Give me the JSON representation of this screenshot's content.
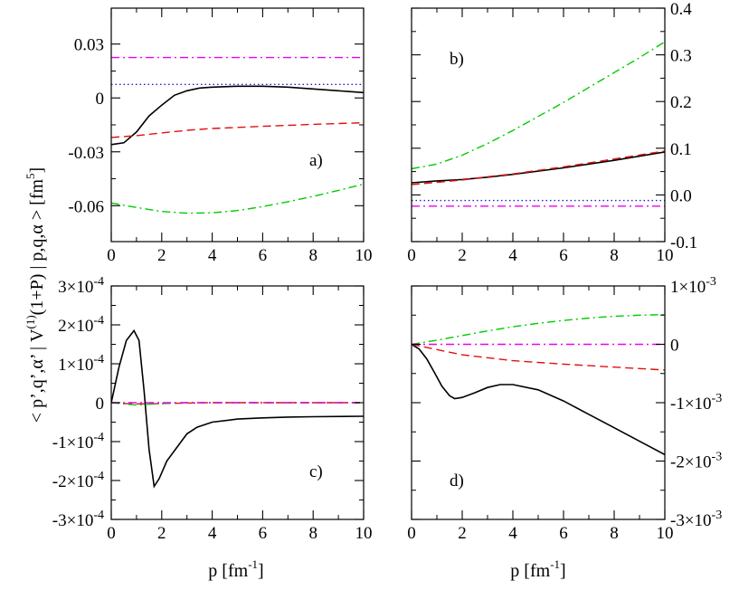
{
  "figure": {
    "ylabel_parts": {
      "pre": "< p’,q’,α’ | V",
      "sup1": "(1)",
      "mid": "(1+P) | p,q,α > [fm",
      "sup2": "5",
      "post": "]"
    },
    "xlabel_parts": {
      "pre": "p [fm",
      "sup": "-1",
      "post": "]"
    }
  },
  "chart_data": [
    {
      "type": "line",
      "panel_label": "a)",
      "xlim": [
        0,
        10
      ],
      "ylim": [
        -0.08,
        0.05
      ],
      "x_ticks": [
        0,
        2,
        4,
        6,
        8,
        10
      ],
      "x_tick_labels": [
        "0",
        "2",
        "4",
        "6",
        "8",
        "10"
      ],
      "y_ticks": [
        -0.06,
        -0.03,
        0,
        0.03
      ],
      "y_tick_labels": [
        "-0.06",
        "-0.03",
        "0",
        "0.03"
      ],
      "y_side": "left",
      "series": [
        {
          "name": "solid",
          "color": "#000000",
          "dash": "solid",
          "x": [
            0,
            0.5,
            1,
            1.5,
            2,
            2.5,
            3,
            3.5,
            4,
            5,
            6,
            7,
            8,
            9,
            10
          ],
          "y": [
            -0.026,
            -0.025,
            -0.019,
            -0.01,
            -0.004,
            0.0015,
            0.004,
            0.0055,
            0.006,
            0.0065,
            0.0065,
            0.006,
            0.005,
            0.004,
            0.003
          ]
        },
        {
          "name": "dashed",
          "color": "#e01010",
          "dash": "dashed",
          "x": [
            0,
            1,
            2,
            3,
            4,
            6,
            8,
            10
          ],
          "y": [
            -0.022,
            -0.021,
            -0.0195,
            -0.018,
            -0.017,
            -0.0158,
            -0.0147,
            -0.0138
          ]
        },
        {
          "name": "dotted",
          "color": "#2020d0",
          "dash": "dotted",
          "x": [
            0,
            10
          ],
          "y": [
            0.0075,
            0.0075
          ]
        },
        {
          "name": "dash-dot",
          "color": "#00cc00",
          "dash": "dashdot",
          "x": [
            0,
            1,
            2,
            3,
            4,
            5,
            6,
            7,
            8,
            9,
            10
          ],
          "y": [
            -0.0585,
            -0.061,
            -0.0632,
            -0.0642,
            -0.064,
            -0.0627,
            -0.0605,
            -0.0578,
            -0.0548,
            -0.0515,
            -0.048
          ]
        },
        {
          "name": "dash-dot magenta",
          "color": "#ee00ee",
          "dash": "dashdot",
          "x": [
            0,
            10
          ],
          "y": [
            0.0225,
            0.0225
          ]
        }
      ]
    },
    {
      "type": "line",
      "panel_label": "b)",
      "xlim": [
        0,
        10
      ],
      "ylim": [
        -0.1,
        0.4
      ],
      "x_ticks": [
        0,
        2,
        4,
        6,
        8,
        10
      ],
      "x_tick_labels": [
        "0",
        "2",
        "4",
        "6",
        "8",
        "10"
      ],
      "y_ticks": [
        -0.1,
        0,
        0.1,
        0.2,
        0.3,
        0.4
      ],
      "y_tick_labels": [
        "-0.1",
        "0.0",
        "0.1",
        "0.2",
        "0.3",
        "0.4"
      ],
      "y_side": "right",
      "series": [
        {
          "name": "solid",
          "color": "#000000",
          "dash": "solid",
          "x": [
            0,
            1,
            2,
            3,
            4,
            6,
            8,
            10
          ],
          "y": [
            0.026,
            0.03,
            0.033,
            0.038,
            0.044,
            0.058,
            0.074,
            0.092
          ]
        },
        {
          "name": "dashed",
          "color": "#e01010",
          "dash": "dashed",
          "x": [
            0,
            1,
            2,
            3,
            4,
            6,
            8,
            10
          ],
          "y": [
            0.022,
            0.027,
            0.032,
            0.039,
            0.045,
            0.06,
            0.077,
            0.094
          ]
        },
        {
          "name": "dotted",
          "color": "#2020d0",
          "dash": "dotted",
          "x": [
            0,
            10
          ],
          "y": [
            -0.012,
            -0.012
          ]
        },
        {
          "name": "dash-dot",
          "color": "#00cc00",
          "dash": "dashdot",
          "x": [
            0,
            1,
            2,
            3,
            4,
            5,
            6,
            7,
            8,
            9,
            10
          ],
          "y": [
            0.056,
            0.066,
            0.085,
            0.11,
            0.138,
            0.168,
            0.198,
            0.23,
            0.262,
            0.294,
            0.328
          ]
        },
        {
          "name": "dash-dot magenta",
          "color": "#ee00ee",
          "dash": "dashdot",
          "x": [
            0,
            10
          ],
          "y": [
            -0.024,
            -0.024
          ]
        }
      ]
    },
    {
      "type": "line",
      "panel_label": "c)",
      "xlim": [
        0,
        10
      ],
      "ylim": [
        -0.0003,
        0.0003
      ],
      "x_ticks": [
        0,
        2,
        4,
        6,
        8,
        10
      ],
      "x_tick_labels": [
        "0",
        "2",
        "4",
        "6",
        "8",
        "10"
      ],
      "y_ticks": [
        -0.0003,
        -0.0002,
        -0.0001,
        0,
        0.0001,
        0.0002,
        0.0003
      ],
      "y_tick_labels": [
        {
          "m": "-3×10",
          "e": "-4"
        },
        {
          "m": "-2×10",
          "e": "-4"
        },
        {
          "m": "-1×10",
          "e": "-4"
        },
        {
          "m": "0",
          "e": ""
        },
        {
          "m": "1×10",
          "e": "-4"
        },
        {
          "m": "2×10",
          "e": "-4"
        },
        {
          "m": "3×10",
          "e": "-4"
        }
      ],
      "y_side": "left",
      "series": [
        {
          "name": "solid",
          "color": "#000000",
          "dash": "solid",
          "x": [
            0,
            0.3,
            0.6,
            0.9,
            1.1,
            1.3,
            1.5,
            1.7,
            1.9,
            2.2,
            2.6,
            3.0,
            3.4,
            4.0,
            5.0,
            6.0,
            7.0,
            8.0,
            10.0
          ],
          "y": [
            0,
            9e-05,
            0.00016,
            0.000185,
            0.00016,
            3e-05,
            -0.00012,
            -0.000215,
            -0.000195,
            -0.00015,
            -0.000115,
            -8e-05,
            -6.3e-05,
            -5e-05,
            -4.2e-05,
            -3.9e-05,
            -3.7e-05,
            -3.6e-05,
            -3.5e-05
          ]
        },
        {
          "name": "dashed",
          "color": "#e01010",
          "dash": "dashed",
          "x": [
            0,
            0.5,
            1,
            1.5,
            2,
            4,
            6,
            10
          ],
          "y": [
            0,
            -2e-06,
            -3e-06,
            -3e-06,
            -2e-06,
            0,
            0,
            0
          ]
        },
        {
          "name": "dash-dot",
          "color": "#00cc00",
          "dash": "dashdot",
          "x": [
            0,
            0.5,
            1,
            1.5,
            2,
            3,
            4,
            10
          ],
          "y": [
            0,
            -3e-06,
            -6e-06,
            -4e-06,
            -2e-06,
            0,
            0,
            0
          ]
        },
        {
          "name": "dash-dot magenta",
          "color": "#ee00ee",
          "dash": "dashdot",
          "x": [
            0,
            10
          ],
          "y": [
            0,
            0
          ]
        }
      ]
    },
    {
      "type": "line",
      "panel_label": "d)",
      "xlim": [
        0,
        10
      ],
      "ylim": [
        -0.003,
        0.001
      ],
      "x_ticks": [
        0,
        2,
        4,
        6,
        8,
        10
      ],
      "x_tick_labels": [
        "0",
        "2",
        "4",
        "6",
        "8",
        "10"
      ],
      "y_ticks": [
        -0.003,
        -0.002,
        -0.001,
        0,
        0.001
      ],
      "y_tick_labels": [
        {
          "m": "-3×10",
          "e": "-3"
        },
        {
          "m": "-2×10",
          "e": "-3"
        },
        {
          "m": "-1×10",
          "e": "-3"
        },
        {
          "m": "0",
          "e": ""
        },
        {
          "m": "1×10",
          "e": "-3"
        }
      ],
      "y_side": "right",
      "series": [
        {
          "name": "solid",
          "color": "#000000",
          "dash": "solid",
          "x": [
            0,
            0.3,
            0.6,
            0.9,
            1.2,
            1.5,
            1.7,
            2.0,
            2.5,
            3.0,
            3.5,
            4.0,
            5.0,
            6.0,
            7.0,
            8.0,
            9.0,
            10.0
          ],
          "y": [
            0,
            -8e-05,
            -0.00025,
            -0.00048,
            -0.00072,
            -0.00088,
            -0.00093,
            -0.00091,
            -0.00083,
            -0.00074,
            -0.00069,
            -0.00069,
            -0.00078,
            -0.00097,
            -0.0012,
            -0.00143,
            -0.00166,
            -0.00189
          ]
        },
        {
          "name": "dashed",
          "color": "#e01010",
          "dash": "dashed",
          "x": [
            0,
            1,
            2,
            4,
            6,
            8,
            10
          ],
          "y": [
            0,
            -9e-05,
            -0.00018,
            -0.00028,
            -0.00034,
            -0.00039,
            -0.00044
          ]
        },
        {
          "name": "dash-dot",
          "color": "#00cc00",
          "dash": "dashdot",
          "x": [
            0,
            1,
            2,
            3,
            4,
            5,
            6,
            7,
            8,
            9,
            10
          ],
          "y": [
            0,
            7e-05,
            0.00015,
            0.00023,
            0.0003,
            0.00036,
            0.00041,
            0.00045,
            0.00048,
            0.0005,
            0.00051
          ]
        },
        {
          "name": "dash-dot magenta",
          "color": "#ee00ee",
          "dash": "dashdot",
          "x": [
            0,
            10
          ],
          "y": [
            0,
            0
          ]
        }
      ]
    }
  ]
}
